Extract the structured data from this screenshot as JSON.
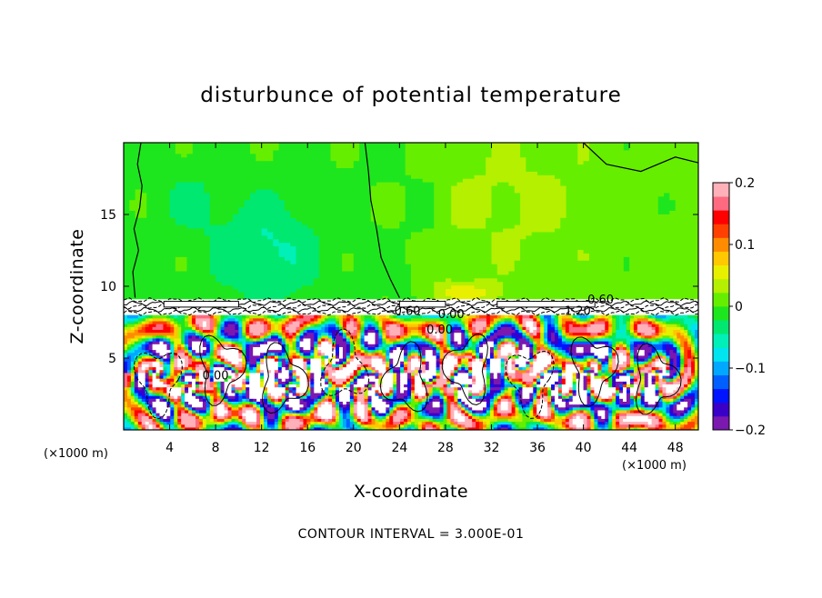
{
  "chart_data": {
    "type": "heatmap",
    "title": "disturbunce of potential temperature",
    "xlabel": "X-coordinate",
    "ylabel": "Z-coordinate",
    "x_unit": "(×1000 m)",
    "x_range": [
      0,
      50
    ],
    "y_range": [
      0,
      20
    ],
    "x_ticks": [
      4,
      8,
      12,
      16,
      20,
      24,
      28,
      32,
      36,
      40,
      44,
      48
    ],
    "y_ticks": [
      5,
      10,
      15
    ],
    "colorbar": {
      "range": [
        -0.2,
        0.2
      ],
      "ticks": [
        {
          "value": 0.2,
          "label": "0.2"
        },
        {
          "value": 0.1,
          "label": "0.1"
        },
        {
          "value": 0.0,
          "label": "0"
        },
        {
          "value": -0.1,
          "label": "−0.1"
        },
        {
          "value": -0.2,
          "label": "−0.2"
        }
      ],
      "colors": [
        "#7a18b0",
        "#3a00c8",
        "#0014ff",
        "#0060ff",
        "#00a8ff",
        "#00e4f0",
        "#00f0b8",
        "#00e870",
        "#1ee61e",
        "#66ee00",
        "#b4f000",
        "#e8f000",
        "#ffc800",
        "#ff8c00",
        "#ff4000",
        "#ff0000",
        "#ff6a80",
        "#ffb0b8"
      ]
    },
    "contour_interval": "CONTOUR INTERVAL = 3.000E-01",
    "contour_labels": [
      {
        "x": 8.0,
        "y": 3.5,
        "text": "0.00"
      },
      {
        "x": 24.5,
        "y": 8.0,
        "text": "-0.60"
      },
      {
        "x": 28.5,
        "y": 7.8,
        "text": "0.00"
      },
      {
        "x": 27.5,
        "y": 6.7,
        "text": "0.00"
      },
      {
        "x": 41.5,
        "y": 8.8,
        "text": "0.60"
      },
      {
        "x": 39.5,
        "y": 8.0,
        "text": "1.20"
      }
    ],
    "field_description_regions": [
      {
        "name": "upper layer",
        "z": [
          9,
          20
        ],
        "value_near": 0.0
      },
      {
        "name": "lower layer",
        "z": [
          0,
          8
        ],
        "value_range": [
          -0.2,
          0.2
        ]
      }
    ]
  }
}
